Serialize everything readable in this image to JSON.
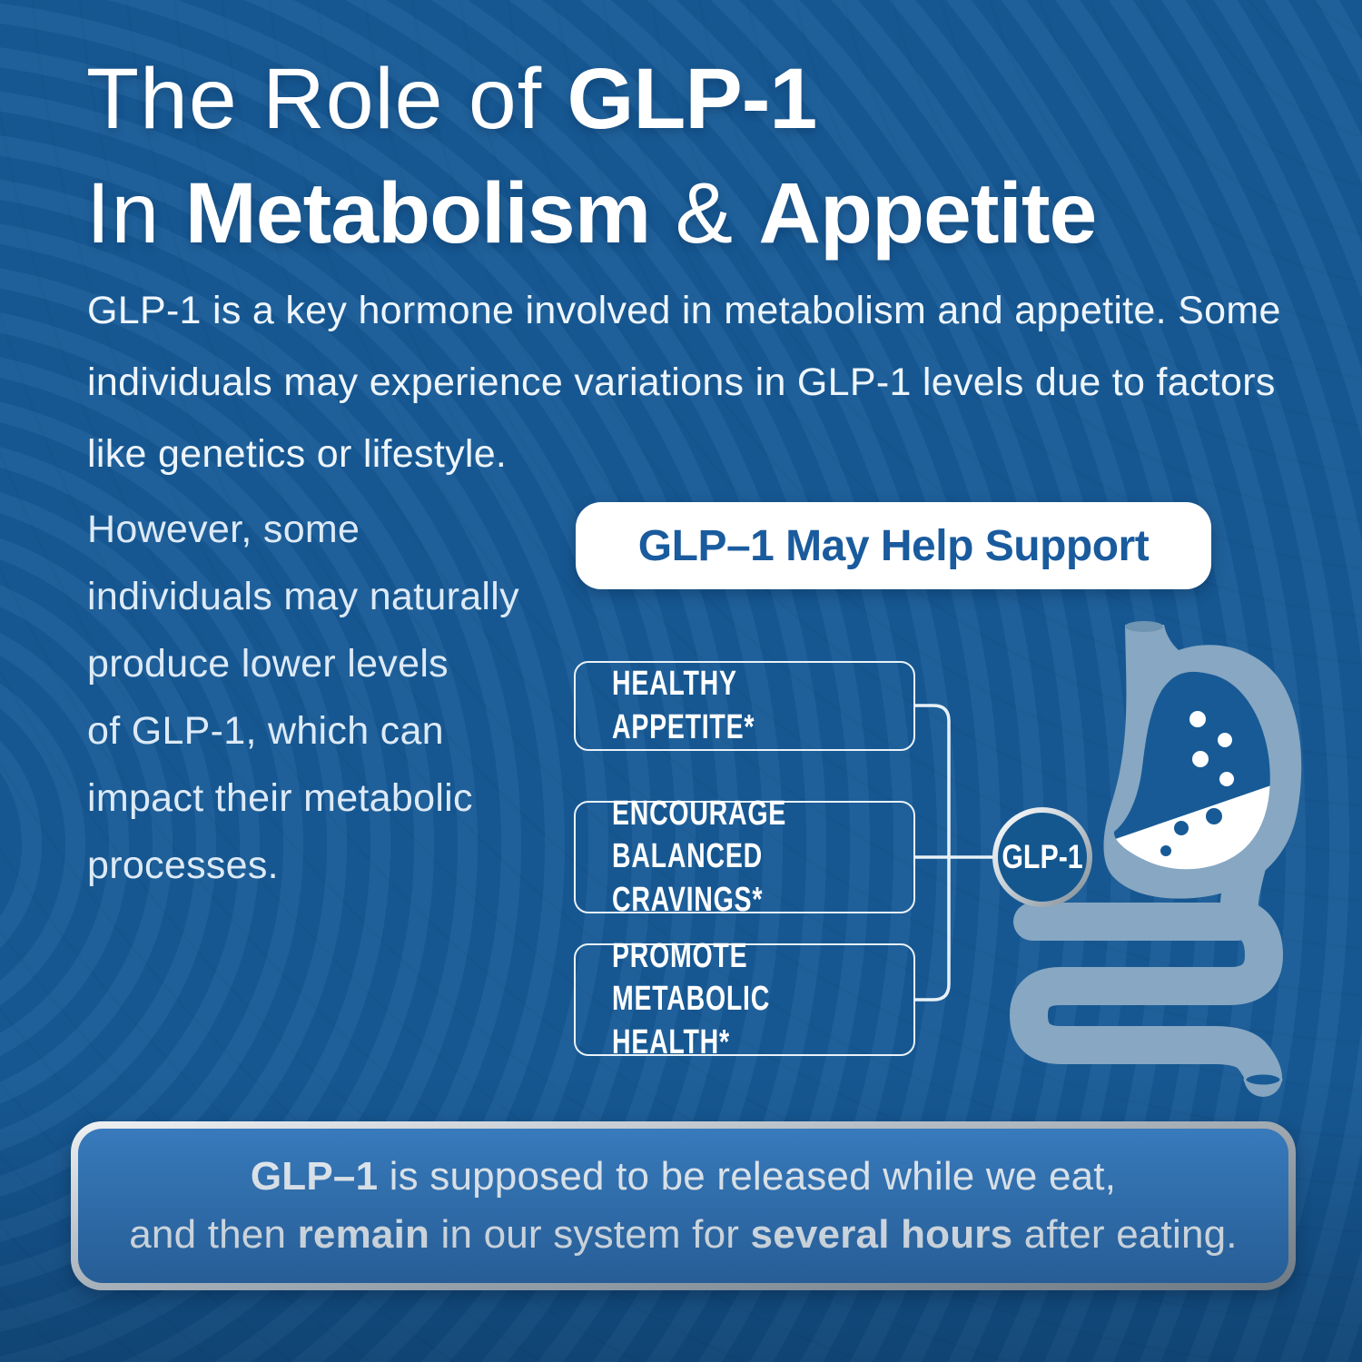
{
  "colors": {
    "background": "#175a96",
    "pill_background": "#ffffff",
    "pill_text": "#1a5b9e",
    "benefit_border": "#e9f2f9",
    "connector": "#e8f1f8",
    "organ_icon": "#87a7c2",
    "footer_fill": "#3579bd",
    "footer_border_silver": "#c3cbd1",
    "text_white": "#ffffff"
  },
  "title": {
    "line1": [
      {
        "t": "The Role of ",
        "b": false
      },
      {
        "t": "GLP-1",
        "b": true
      }
    ],
    "line2": [
      {
        "t": "In ",
        "b": false
      },
      {
        "t": "Metabolism",
        "b": true
      },
      {
        "t": " & ",
        "b": false
      },
      {
        "t": "Appetite",
        "b": true
      }
    ]
  },
  "intro": {
    "text": "GLP-1 is a key hormone involved in metabolism and appetite. Some\nindividuals may experience variations in GLP-1 levels due to factors\nlike genetics or lifestyle."
  },
  "side_note": {
    "text": "However, some\nindividuals may naturally\nproduce lower levels\nof GLP-1, which can\nimpact their metabolic\nprocesses."
  },
  "support": {
    "header": "GLP–1 May Help Support",
    "items": [
      "HEALTHY APPETITE*",
      "ENCOURAGE BALANCED\nCRAVINGS*",
      "PROMOTE METABOLIC\nHEALTH*"
    ]
  },
  "hub": {
    "label": "GLP-1"
  },
  "footer": {
    "line1": [
      {
        "t": "GLP–1",
        "b": true
      },
      {
        "t": " is supposed to be released while we eat,",
        "b": false
      }
    ],
    "line2": [
      {
        "t": "and then ",
        "b": false
      },
      {
        "t": "remain",
        "b": true
      },
      {
        "t": " in our system for ",
        "b": false
      },
      {
        "t": "several hours",
        "b": true
      },
      {
        "t": " after eating.",
        "b": false
      }
    ]
  }
}
